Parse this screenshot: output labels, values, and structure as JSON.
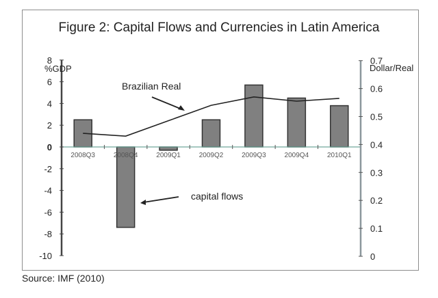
{
  "chart_data": {
    "type": "bar",
    "title": "Figure 2: Capital Flows and Currencies in Latin America",
    "source": "Source: IMF (2010)",
    "categories": [
      "2008Q3",
      "2008Q4",
      "2009Q1",
      "2009Q2",
      "2009Q3",
      "2009Q4",
      "2010Q1"
    ],
    "series": [
      {
        "name": "capital flows",
        "type": "bar",
        "axis": "left",
        "values": [
          2.5,
          -7.4,
          -0.3,
          2.5,
          5.7,
          4.5,
          3.8
        ]
      },
      {
        "name": "Brazilian Real",
        "type": "line",
        "axis": "right",
        "values": [
          0.44,
          0.43,
          0.485,
          0.54,
          0.57,
          0.555,
          0.565
        ]
      }
    ],
    "ylabel": "%GDP",
    "ylabel_right": "Dollar/Real",
    "ylim": [
      -10,
      8
    ],
    "ylim_right": [
      0,
      0.7
    ],
    "yticks": [
      8,
      6,
      4,
      2,
      0,
      -2,
      -4,
      -6,
      -8,
      -10
    ],
    "yticks_right": [
      0.7,
      0.6,
      0.5,
      0.4,
      0.3,
      0.2,
      0.1,
      0
    ],
    "grid": false,
    "annotations": [
      {
        "text": "Brazilian Real",
        "points_to": "line"
      },
      {
        "text": "capital flows",
        "points_to": "2008Q4 bar"
      }
    ]
  },
  "colors": {
    "bar_fill": "#808080",
    "bar_stroke": "#333333",
    "line": "#222222",
    "zero_line": "#6fa89a",
    "left_axis": "#444444",
    "right_axis": "#8c979c"
  }
}
